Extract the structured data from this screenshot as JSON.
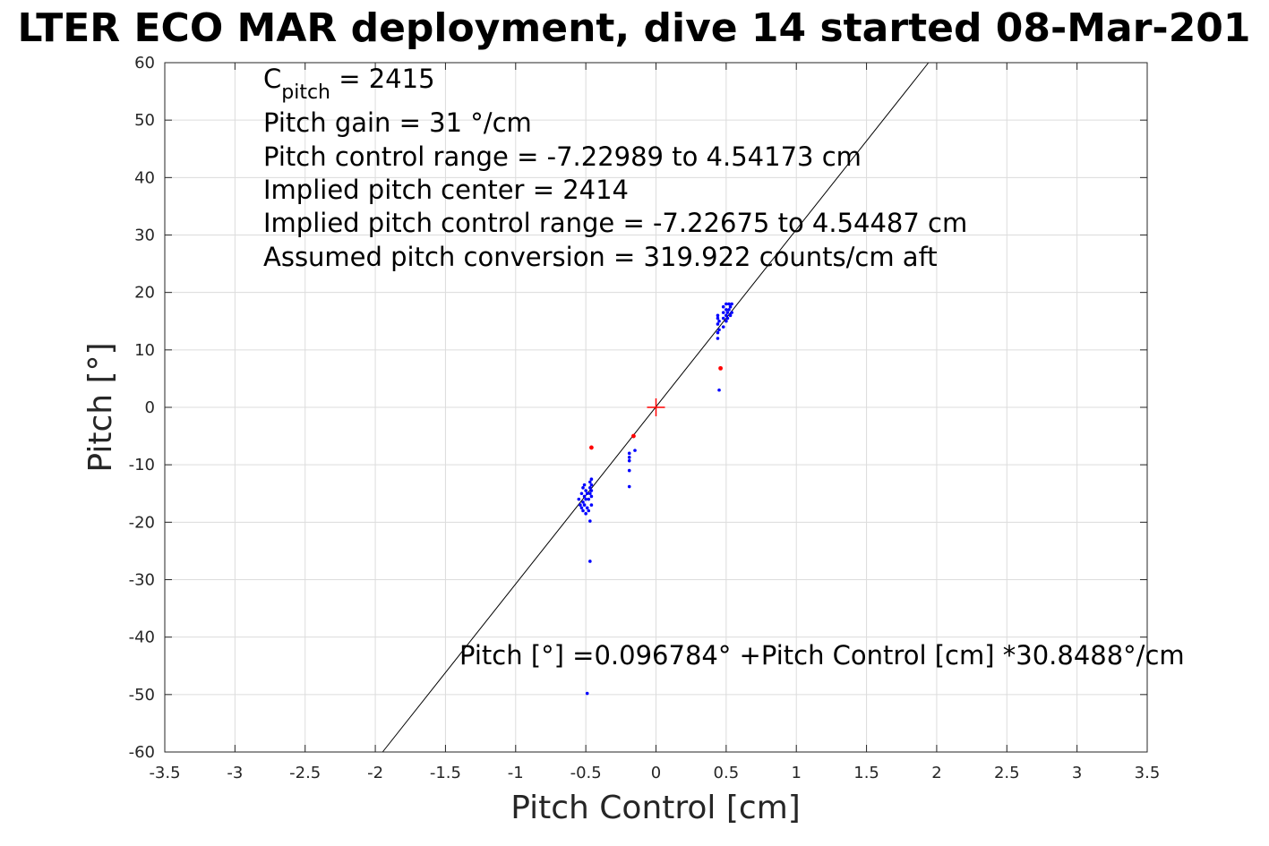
{
  "chart_data": {
    "type": "scatter",
    "title": "LTER ECO MAR deployment, dive 14 started 08-Mar-201",
    "xlabel": "Pitch Control [cm]",
    "ylabel": "Pitch [°]",
    "xlim": [
      -3.5,
      3.5
    ],
    "ylim": [
      -60,
      60
    ],
    "grid": true,
    "x_ticks": [
      {
        "value": -3.5,
        "label": "-3.5"
      },
      {
        "value": -3,
        "label": "-3"
      },
      {
        "value": -2.5,
        "label": "-2.5"
      },
      {
        "value": -2,
        "label": "-2"
      },
      {
        "value": -1.5,
        "label": "-1.5"
      },
      {
        "value": -1,
        "label": "-1"
      },
      {
        "value": -0.5,
        "label": "-0.5"
      },
      {
        "value": 0,
        "label": "0"
      },
      {
        "value": 0.5,
        "label": "0.5"
      },
      {
        "value": 1,
        "label": "1"
      },
      {
        "value": 1.5,
        "label": "1.5"
      },
      {
        "value": 2,
        "label": "2"
      },
      {
        "value": 2.5,
        "label": "2.5"
      },
      {
        "value": 3,
        "label": "3"
      },
      {
        "value": 3.5,
        "label": "3.5"
      }
    ],
    "y_ticks": [
      {
        "value": 60,
        "label": "60"
      },
      {
        "value": 50,
        "label": "50"
      },
      {
        "value": 40,
        "label": "40"
      },
      {
        "value": 30,
        "label": "30"
      },
      {
        "value": 20,
        "label": "20"
      },
      {
        "value": 10,
        "label": "10"
      },
      {
        "value": 0,
        "label": "0"
      },
      {
        "value": -10,
        "label": "-10"
      },
      {
        "value": -20,
        "label": "-20"
      },
      {
        "value": -30,
        "label": "-30"
      },
      {
        "value": -40,
        "label": "-40"
      },
      {
        "value": -50,
        "label": "-50"
      },
      {
        "value": -60,
        "label": "-60"
      }
    ],
    "annotations": {
      "c_pitch_base": "C",
      "c_pitch_sub": "pitch",
      "c_pitch_value": " = 2415",
      "lines": [
        "Pitch gain = 31 °/cm",
        "Pitch control range = -7.22989 to 4.54173 cm",
        "Implied pitch center = 2414",
        "Implied pitch control range = -7.22675 to 4.54487 cm",
        "Assumed pitch conversion = 319.922 counts/cm aft"
      ],
      "fit_label": "Pitch [°] =0.096784° +Pitch Control [cm] *30.8488°/cm"
    },
    "fit_line": {
      "intercept": 0.096784,
      "slope": 30.8488,
      "color": "#000000"
    },
    "center_marker": {
      "x": 0,
      "y": 0,
      "color": "#ff0000"
    },
    "series": [
      {
        "color": "#0000ff",
        "points": [
          [
            -0.55,
            -16
          ],
          [
            -0.54,
            -17
          ],
          [
            -0.53,
            -15
          ],
          [
            -0.53,
            -17.5
          ],
          [
            -0.52,
            -14
          ],
          [
            -0.52,
            -16.5
          ],
          [
            -0.52,
            -18
          ],
          [
            -0.51,
            -13.5
          ],
          [
            -0.51,
            -15.5
          ],
          [
            -0.51,
            -17
          ],
          [
            -0.5,
            -14.5
          ],
          [
            -0.5,
            -16
          ],
          [
            -0.5,
            -18.5
          ],
          [
            -0.49,
            -15
          ],
          [
            -0.49,
            -17.5
          ],
          [
            -0.48,
            -16
          ],
          [
            -0.48,
            -18
          ],
          [
            -0.47,
            -15
          ],
          [
            -0.47,
            -14
          ],
          [
            -0.47,
            -13
          ],
          [
            -0.46,
            -12.5
          ],
          [
            -0.46,
            -13.5
          ],
          [
            -0.46,
            -14.5
          ],
          [
            -0.46,
            -15.5
          ],
          [
            -0.46,
            -17
          ],
          [
            -0.47,
            -19.8
          ],
          [
            -0.47,
            -26.8
          ],
          [
            -0.49,
            -49.8
          ],
          [
            -0.19,
            -8
          ],
          [
            -0.19,
            -8.7
          ],
          [
            -0.19,
            -9.3
          ],
          [
            -0.19,
            -11
          ],
          [
            -0.19,
            -13.8
          ],
          [
            -0.15,
            -7.5
          ],
          [
            0.44,
            12
          ],
          [
            0.44,
            13
          ],
          [
            0.44,
            14.5
          ],
          [
            0.44,
            15.5
          ],
          [
            0.44,
            16
          ],
          [
            0.45,
            13.5
          ],
          [
            0.45,
            15
          ],
          [
            0.45,
            3
          ],
          [
            0.48,
            14
          ],
          [
            0.48,
            15.5
          ],
          [
            0.48,
            16.5
          ],
          [
            0.48,
            17.5
          ],
          [
            0.5,
            15
          ],
          [
            0.5,
            16
          ],
          [
            0.5,
            17
          ],
          [
            0.5,
            18
          ],
          [
            0.51,
            15.5
          ],
          [
            0.51,
            16.5
          ],
          [
            0.52,
            17
          ],
          [
            0.52,
            18
          ],
          [
            0.53,
            16
          ],
          [
            0.53,
            17.5
          ],
          [
            0.54,
            16.5
          ],
          [
            0.54,
            18
          ]
        ]
      },
      {
        "color": "#ff0000",
        "points": [
          [
            -0.46,
            -7
          ],
          [
            -0.16,
            -5
          ],
          [
            0.46,
            6.8
          ]
        ]
      }
    ]
  }
}
